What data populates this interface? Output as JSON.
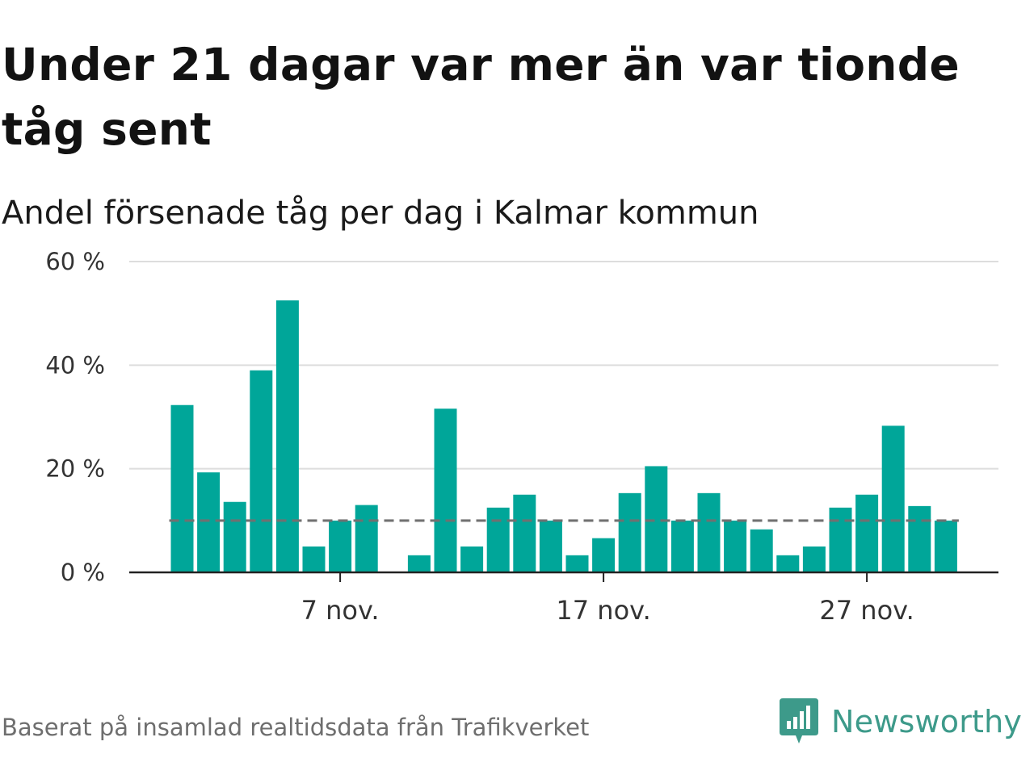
{
  "title": "Under 21 dagar var mer än var tionde tåg sent",
  "subtitle": "Andel försenade tåg per dag i Kalmar kommun",
  "source": "Baserat på insamlad realtidsdata från Trafikverket",
  "brand": "Newsworthy",
  "colors": {
    "bar": "#00a699",
    "reference_line": "#707070",
    "grid": "#dddddd",
    "axis": "#222222",
    "brand": "#3d9a8a"
  },
  "chart_data": {
    "type": "bar",
    "ylim": [
      0,
      60
    ],
    "y_ticks": [
      {
        "value": 0,
        "label": "0 %"
      },
      {
        "value": 20,
        "label": "20 %"
      },
      {
        "value": 40,
        "label": "40 %"
      },
      {
        "value": 60,
        "label": "60 %"
      }
    ],
    "x_ticks": [
      {
        "day": 7,
        "label": "7 nov."
      },
      {
        "day": 17,
        "label": "17 nov."
      },
      {
        "day": 27,
        "label": "27 nov."
      }
    ],
    "grid": "horizontal",
    "reference_line": 10,
    "days": [
      1,
      2,
      3,
      4,
      5,
      6,
      7,
      8,
      9,
      10,
      11,
      12,
      13,
      14,
      15,
      16,
      17,
      18,
      19,
      20,
      21,
      22,
      23,
      24,
      25,
      26,
      27,
      28,
      29,
      30
    ],
    "values": [
      32.3,
      19.3,
      13.6,
      39,
      52.5,
      5,
      10,
      13,
      0,
      3.3,
      31.6,
      5,
      12.5,
      15,
      10,
      3.3,
      6.6,
      15.3,
      20.5,
      10,
      15.3,
      10,
      8.3,
      3.3,
      5,
      12.5,
      15,
      28.3,
      12.8,
      10
    ]
  }
}
